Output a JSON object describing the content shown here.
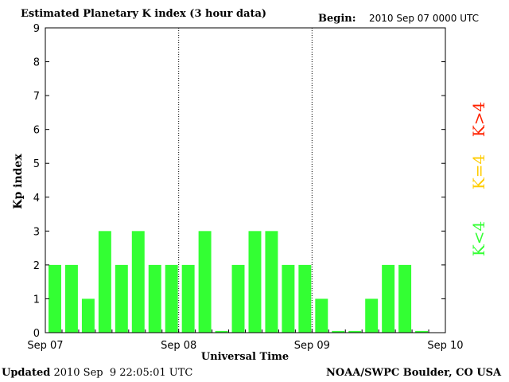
{
  "header": {
    "title": "Estimated Planetary K index (3 hour data)",
    "begin_label": "Begin:",
    "begin_value": "2010 Sep 07 0000 UTC"
  },
  "footer": {
    "updated_label": "Updated",
    "updated_value": "2010 Sep  9 22:05:01 UTC",
    "source": "NOAA/SWPC Boulder, CO USA"
  },
  "colors": {
    "low": "#33ff33",
    "equal": "#ffcc00",
    "high": "#ff2200"
  },
  "chart_data": {
    "type": "bar",
    "title": "Estimated Planetary K index (3 hour data)",
    "xlabel": "Universal Time",
    "ylabel": "Kp index",
    "ylim": [
      0,
      9
    ],
    "yticks": [
      0,
      1,
      2,
      3,
      4,
      5,
      6,
      7,
      8,
      9
    ],
    "xticks": [
      "Sep 07",
      "Sep 08",
      "Sep 09",
      "Sep 10"
    ],
    "interval_hours": 3,
    "values": [
      2,
      2,
      1,
      3,
      2,
      3,
      2,
      2,
      2,
      3,
      0.05,
      2,
      3,
      3,
      2,
      2,
      1,
      0.05,
      0.05,
      1,
      2,
      2,
      0.05
    ],
    "legend": [
      {
        "label": "K<4",
        "color": "#33ff33"
      },
      {
        "label": "K=4",
        "color": "#ffcc00"
      },
      {
        "label": "K>4",
        "color": "#ff2200"
      }
    ],
    "day_separators": true
  }
}
